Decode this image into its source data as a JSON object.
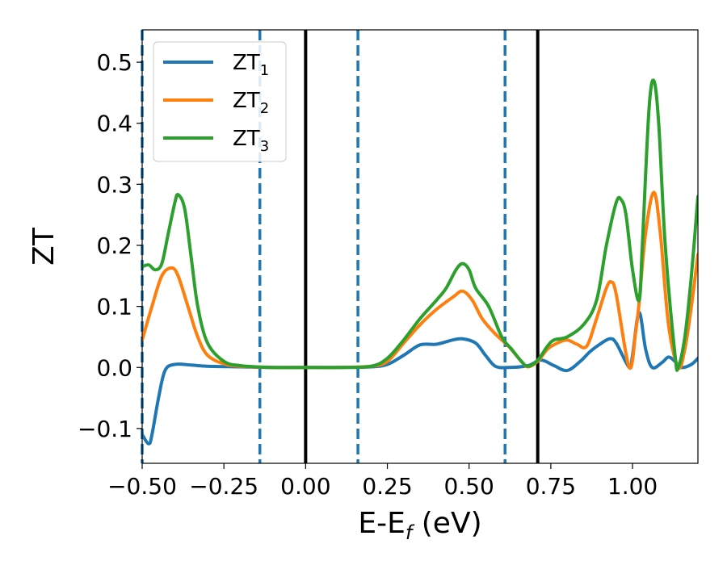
{
  "chart_data": {
    "type": "line",
    "xlabel": "E-E",
    "xlabel_sub": "f",
    "xlabel_unit": " (eV)",
    "ylabel": "ZT",
    "xlim": [
      -0.5,
      1.2
    ],
    "ylim": [
      -0.157,
      0.553
    ],
    "grid": false,
    "legend_position": "top-left",
    "x_ticks": [
      {
        "value": -0.5,
        "label": "−0.50"
      },
      {
        "value": -0.25,
        "label": "−0.25"
      },
      {
        "value": 0.0,
        "label": "0.00"
      },
      {
        "value": 0.25,
        "label": "0.25"
      },
      {
        "value": 0.5,
        "label": "0.50"
      },
      {
        "value": 0.75,
        "label": "0.75"
      },
      {
        "value": 1.0,
        "label": "1.00"
      }
    ],
    "y_ticks": [
      {
        "value": -0.1,
        "label": "−0.1"
      },
      {
        "value": 0.0,
        "label": "0.0"
      },
      {
        "value": 0.1,
        "label": "0.1"
      },
      {
        "value": 0.2,
        "label": "0.2"
      },
      {
        "value": 0.3,
        "label": "0.3"
      },
      {
        "value": 0.4,
        "label": "0.4"
      },
      {
        "value": 0.5,
        "label": "0.5"
      }
    ],
    "vertical_lines": [
      {
        "x": -0.5,
        "style": "dashed",
        "color": "#1f77b4"
      },
      {
        "x": -0.14,
        "style": "dashed",
        "color": "#1f77b4"
      },
      {
        "x": 0.0,
        "style": "solid",
        "color": "#000000"
      },
      {
        "x": 0.16,
        "style": "dashed",
        "color": "#1f77b4"
      },
      {
        "x": 0.61,
        "style": "dashed",
        "color": "#1f77b4"
      },
      {
        "x": 0.71,
        "style": "solid",
        "color": "#000000"
      }
    ],
    "series": [
      {
        "name": "ZT",
        "name_sub": "1",
        "color": "#1f77b4",
        "points": [
          [
            -0.5,
            -0.11
          ],
          [
            -0.48,
            -0.125
          ],
          [
            -0.47,
            -0.11
          ],
          [
            -0.45,
            -0.05
          ],
          [
            -0.43,
            -0.005
          ],
          [
            -0.4,
            0.005
          ],
          [
            -0.35,
            0.004
          ],
          [
            -0.3,
            0.002
          ],
          [
            -0.2,
            0.001
          ],
          [
            -0.1,
            0.0
          ],
          [
            0.0,
            0.0
          ],
          [
            0.1,
            0.0
          ],
          [
            0.2,
            0.001
          ],
          [
            0.25,
            0.005
          ],
          [
            0.3,
            0.02
          ],
          [
            0.35,
            0.037
          ],
          [
            0.4,
            0.038
          ],
          [
            0.45,
            0.045
          ],
          [
            0.48,
            0.047
          ],
          [
            0.52,
            0.04
          ],
          [
            0.55,
            0.02
          ],
          [
            0.58,
            0.002
          ],
          [
            0.62,
            0.0
          ],
          [
            0.68,
            0.003
          ],
          [
            0.72,
            0.012
          ],
          [
            0.76,
            0.003
          ],
          [
            0.8,
            -0.005
          ],
          [
            0.84,
            0.01
          ],
          [
            0.87,
            0.026
          ],
          [
            0.9,
            0.038
          ],
          [
            0.93,
            0.047
          ],
          [
            0.95,
            0.04
          ],
          [
            0.99,
            0.0
          ],
          [
            1.0,
            0.02
          ],
          [
            1.02,
            0.09
          ],
          [
            1.04,
            0.03
          ],
          [
            1.06,
            0.0
          ],
          [
            1.09,
            0.008
          ],
          [
            1.11,
            0.017
          ],
          [
            1.13,
            0.01
          ],
          [
            1.15,
            0.0
          ],
          [
            1.18,
            0.005
          ],
          [
            1.2,
            0.015
          ]
        ]
      },
      {
        "name": "ZT",
        "name_sub": "2",
        "color": "#ff7f0e",
        "points": [
          [
            -0.5,
            0.045
          ],
          [
            -0.47,
            0.1
          ],
          [
            -0.44,
            0.15
          ],
          [
            -0.41,
            0.163
          ],
          [
            -0.39,
            0.15
          ],
          [
            -0.36,
            0.1
          ],
          [
            -0.33,
            0.05
          ],
          [
            -0.3,
            0.02
          ],
          [
            -0.25,
            0.006
          ],
          [
            -0.2,
            0.002
          ],
          [
            -0.1,
            0.0
          ],
          [
            0.0,
            0.0
          ],
          [
            0.1,
            0.0
          ],
          [
            0.2,
            0.002
          ],
          [
            0.25,
            0.01
          ],
          [
            0.3,
            0.04
          ],
          [
            0.35,
            0.07
          ],
          [
            0.4,
            0.095
          ],
          [
            0.45,
            0.115
          ],
          [
            0.48,
            0.125
          ],
          [
            0.51,
            0.11
          ],
          [
            0.54,
            0.08
          ],
          [
            0.58,
            0.055
          ],
          [
            0.62,
            0.035
          ],
          [
            0.66,
            0.01
          ],
          [
            0.68,
            0.001
          ],
          [
            0.71,
            0.01
          ],
          [
            0.74,
            0.03
          ],
          [
            0.77,
            0.04
          ],
          [
            0.8,
            0.045
          ],
          [
            0.83,
            0.038
          ],
          [
            0.86,
            0.035
          ],
          [
            0.89,
            0.08
          ],
          [
            0.92,
            0.13
          ],
          [
            0.935,
            0.14
          ],
          [
            0.95,
            0.12
          ],
          [
            0.99,
            0.0
          ],
          [
            1.01,
            0.06
          ],
          [
            1.02,
            0.105
          ],
          [
            1.04,
            0.22
          ],
          [
            1.065,
            0.287
          ],
          [
            1.085,
            0.22
          ],
          [
            1.11,
            0.07
          ],
          [
            1.14,
            0.0
          ],
          [
            1.16,
            0.03
          ],
          [
            1.18,
            0.1
          ],
          [
            1.2,
            0.185
          ]
        ]
      },
      {
        "name": "ZT",
        "name_sub": "3",
        "color": "#2ca02c",
        "points": [
          [
            -0.5,
            0.165
          ],
          [
            -0.48,
            0.168
          ],
          [
            -0.46,
            0.16
          ],
          [
            -0.44,
            0.17
          ],
          [
            -0.42,
            0.22
          ],
          [
            -0.4,
            0.27
          ],
          [
            -0.39,
            0.283
          ],
          [
            -0.37,
            0.26
          ],
          [
            -0.35,
            0.18
          ],
          [
            -0.33,
            0.1
          ],
          [
            -0.3,
            0.04
          ],
          [
            -0.25,
            0.01
          ],
          [
            -0.2,
            0.003
          ],
          [
            -0.1,
            0.0
          ],
          [
            0.0,
            0.0
          ],
          [
            0.1,
            0.0
          ],
          [
            0.2,
            0.002
          ],
          [
            0.25,
            0.015
          ],
          [
            0.3,
            0.045
          ],
          [
            0.35,
            0.08
          ],
          [
            0.4,
            0.11
          ],
          [
            0.43,
            0.13
          ],
          [
            0.46,
            0.16
          ],
          [
            0.48,
            0.17
          ],
          [
            0.5,
            0.16
          ],
          [
            0.52,
            0.13
          ],
          [
            0.56,
            0.1
          ],
          [
            0.6,
            0.05
          ],
          [
            0.63,
            0.03
          ],
          [
            0.66,
            0.01
          ],
          [
            0.68,
            0.002
          ],
          [
            0.71,
            0.012
          ],
          [
            0.74,
            0.035
          ],
          [
            0.76,
            0.045
          ],
          [
            0.8,
            0.05
          ],
          [
            0.85,
            0.07
          ],
          [
            0.89,
            0.11
          ],
          [
            0.92,
            0.2
          ],
          [
            0.95,
            0.27
          ],
          [
            0.965,
            0.275
          ],
          [
            0.98,
            0.25
          ],
          [
            1.0,
            0.16
          ],
          [
            1.02,
            0.11
          ],
          [
            1.03,
            0.2
          ],
          [
            1.05,
            0.42
          ],
          [
            1.065,
            0.47
          ],
          [
            1.08,
            0.4
          ],
          [
            1.1,
            0.2
          ],
          [
            1.13,
            0.02
          ],
          [
            1.14,
            0.0
          ],
          [
            1.16,
            0.05
          ],
          [
            1.18,
            0.15
          ],
          [
            1.2,
            0.28
          ]
        ]
      }
    ]
  }
}
